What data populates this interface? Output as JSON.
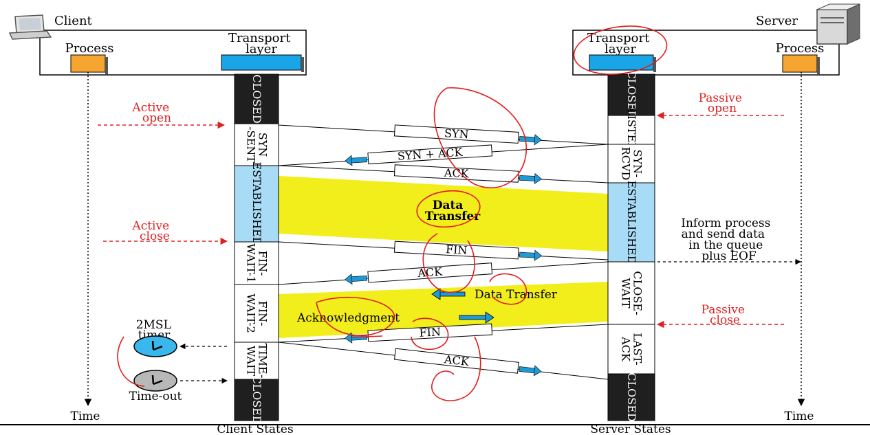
{
  "client": {
    "label": "Client",
    "process": "Process",
    "transport": [
      "Transport",
      "layer"
    ],
    "time": "Time",
    "states_caption": "Client States"
  },
  "server": {
    "label": "Server",
    "process": "Process",
    "transport": [
      "Transport",
      "layer"
    ],
    "time": "Time",
    "states_caption": "Server States"
  },
  "client_states": [
    {
      "id": "closed-top",
      "lines": [
        "CLOSED"
      ]
    },
    {
      "id": "syn-sent",
      "lines": [
        "SYN",
        "-SENT"
      ]
    },
    {
      "id": "established",
      "lines": [
        "ESTABLISHED"
      ]
    },
    {
      "id": "fin-wait-1",
      "lines": [
        "FIN-",
        "WAIT-1"
      ]
    },
    {
      "id": "fin-wait-2",
      "lines": [
        "FIN-",
        "WAIT-2"
      ]
    },
    {
      "id": "time-wait",
      "lines": [
        "TIME-",
        "WAIT"
      ]
    },
    {
      "id": "closed-bottom",
      "lines": [
        "CLOSED"
      ]
    }
  ],
  "server_states": [
    {
      "id": "closed-top",
      "lines": [
        "CLOSED"
      ]
    },
    {
      "id": "listen",
      "lines": [
        "LISTEN"
      ]
    },
    {
      "id": "syn-rcvd",
      "lines": [
        "SYN-",
        "RCVD"
      ]
    },
    {
      "id": "established",
      "lines": [
        "ESTABLISHED"
      ]
    },
    {
      "id": "close-wait",
      "lines": [
        "CLOSE-",
        "WAIT"
      ]
    },
    {
      "id": "last-ack",
      "lines": [
        "LAST-",
        "ACK"
      ]
    },
    {
      "id": "closed-bottom",
      "lines": [
        "CLOSED"
      ]
    }
  ],
  "segments": [
    "SYN",
    "SYN + ACK",
    "ACK",
    "FIN",
    "ACK",
    "FIN",
    "ACK"
  ],
  "annotations": {
    "active_open": [
      "Active",
      "open"
    ],
    "active_close": [
      "Active",
      "close"
    ],
    "passive_open": [
      "Passive",
      "open"
    ],
    "passive_close": [
      "Passive",
      "close"
    ],
    "inform": [
      "Inform process",
      "and send data",
      "in the queue",
      "plus EOF"
    ],
    "data_transfer_main": [
      "Data",
      "Transfer"
    ],
    "data_transfer_half": "Data Transfer",
    "acknowledgment": "Acknowledgment",
    "timer": [
      "2MSL",
      "timer"
    ],
    "timeout": "Time-out"
  },
  "colors": {
    "process_box": "#f7a531",
    "transport_box": "#1aa6e6",
    "established_state": "#a8dbf5",
    "state_bar": "#1f1f1f",
    "data_band": "#f2ee1c",
    "annotation_red": "#e02020",
    "arrow_blue": "#1e9bd7",
    "timer_blue": "#3ab8ee",
    "timeout_gray": "#b8b8b8",
    "scribble_red": "#e31b1b"
  }
}
